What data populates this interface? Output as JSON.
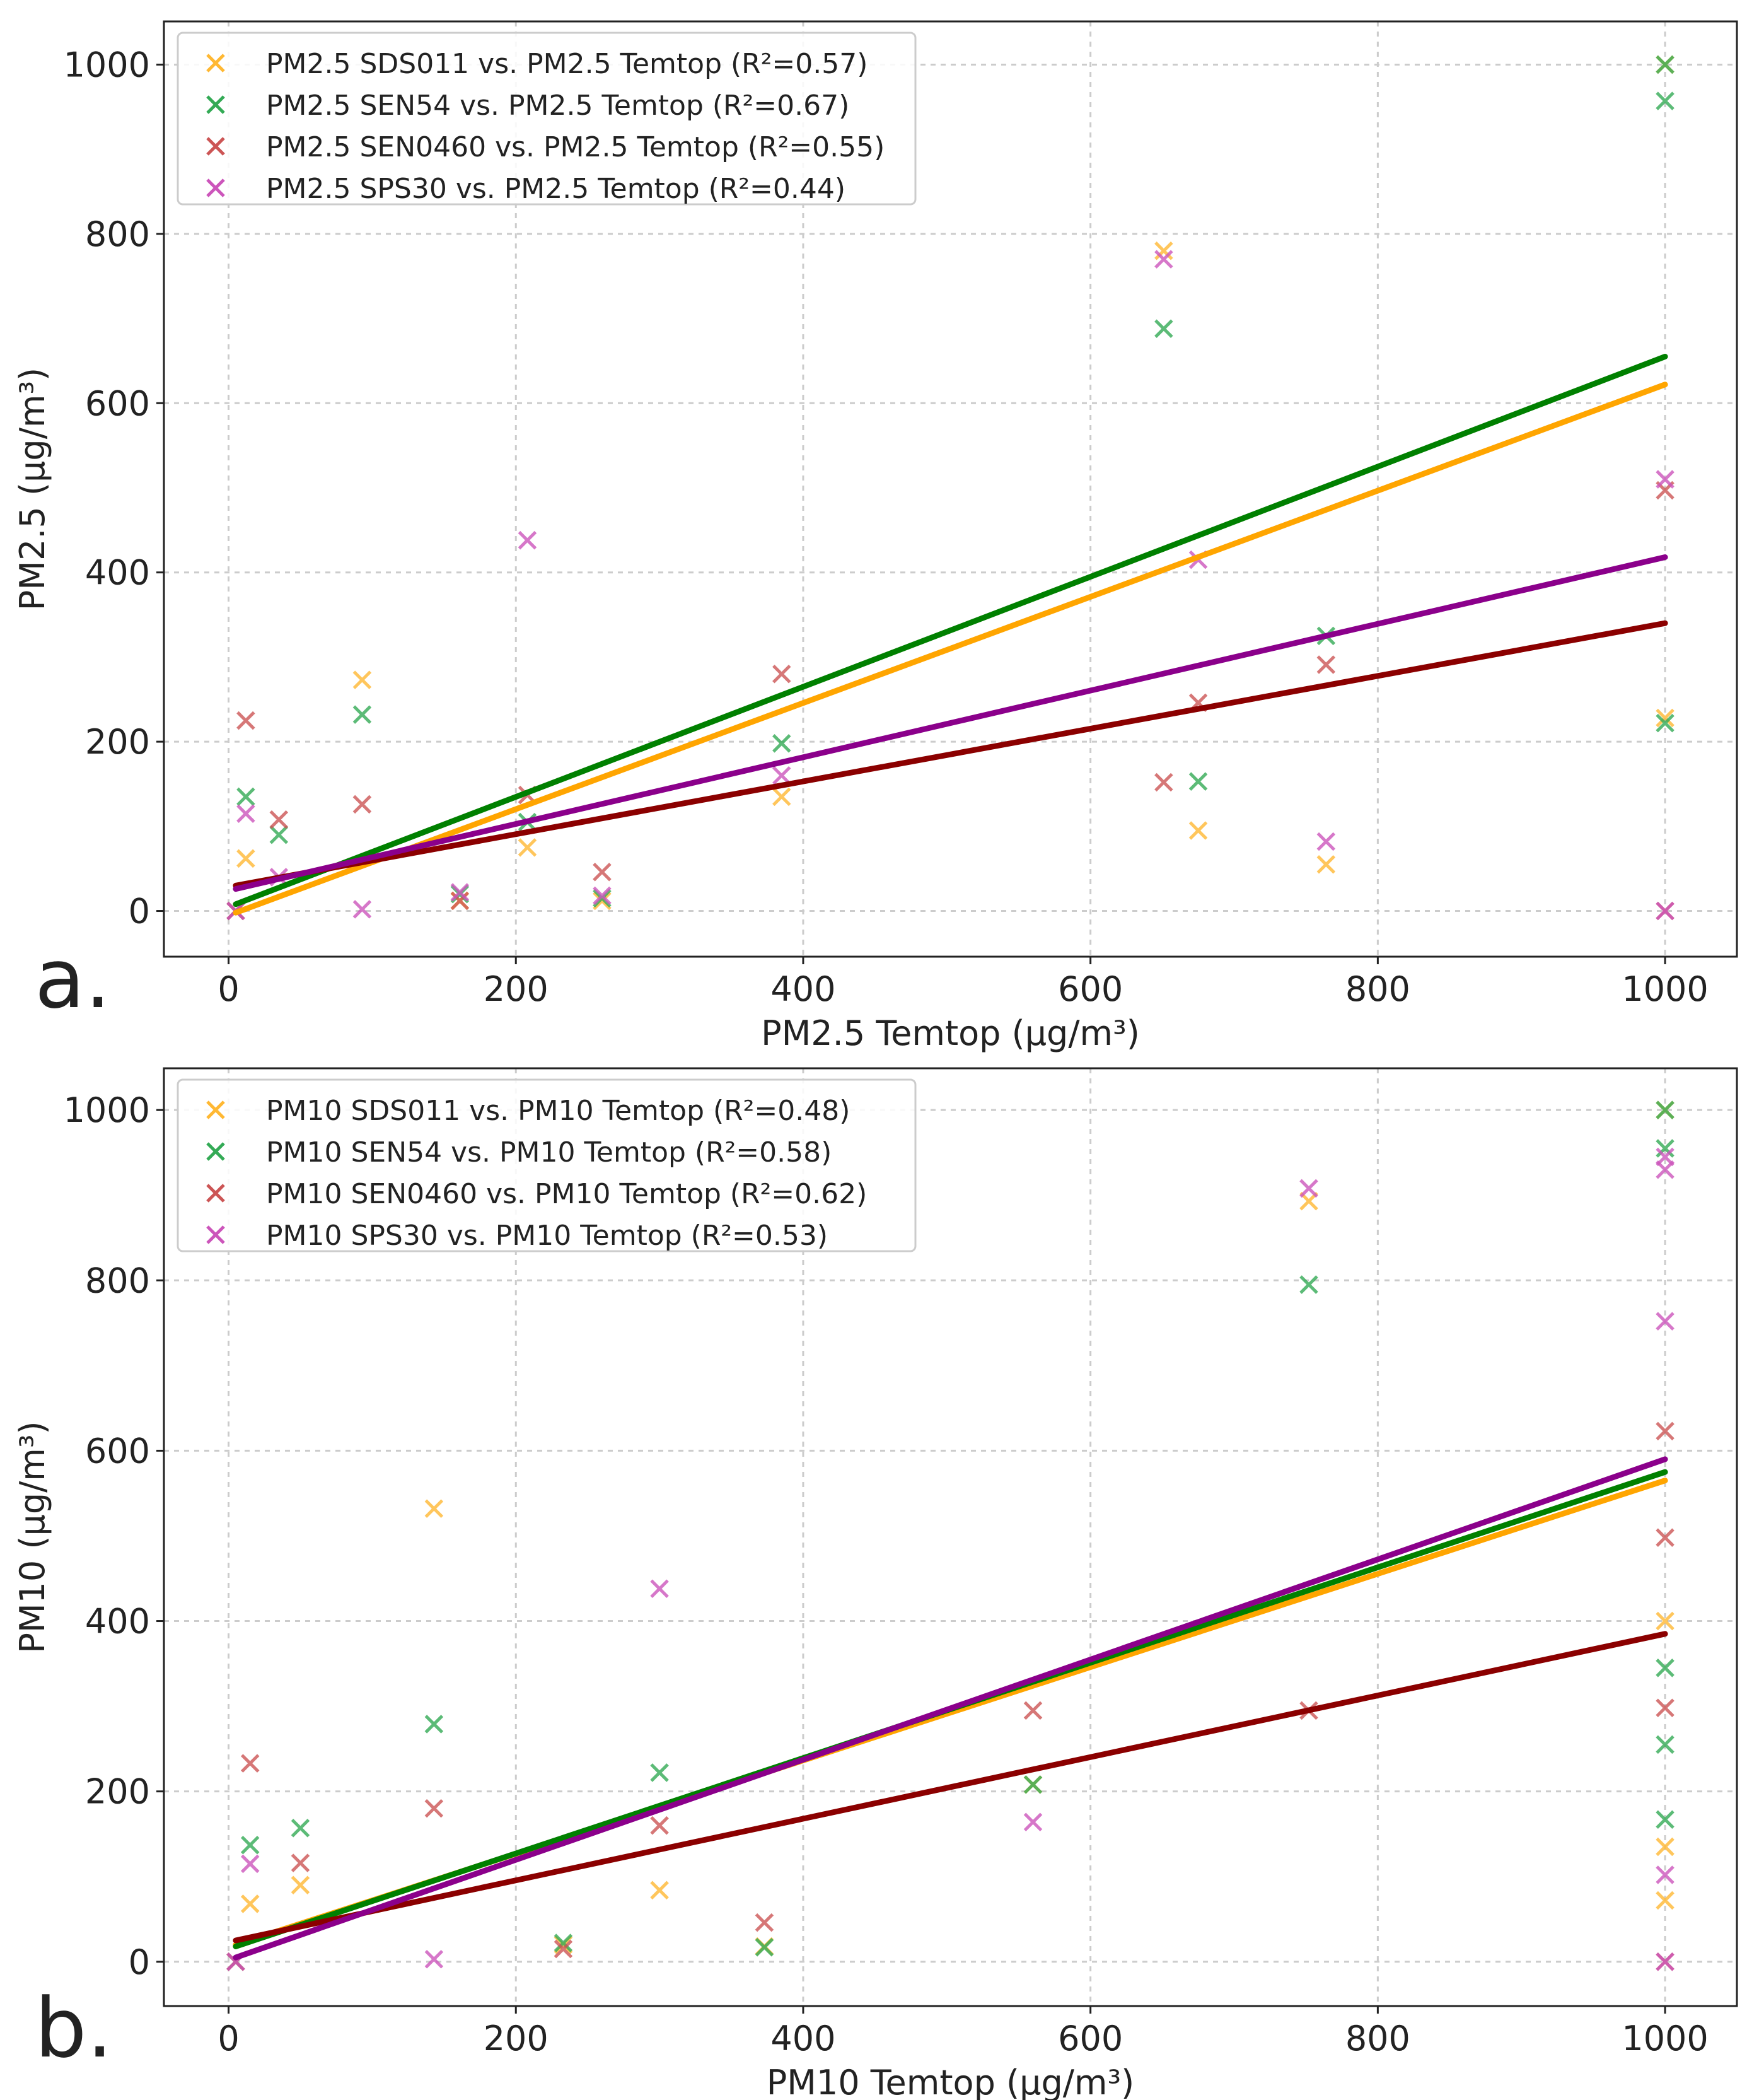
{
  "chart_data": [
    {
      "type": "scatter",
      "panel_label": "a.",
      "xlabel": "PM2.5 Temtop (µg/m³)",
      "ylabel": "PM2.5 (µg/m³)",
      "xlim": [
        -45,
        1050
      ],
      "ylim": [
        -54,
        1051
      ],
      "xticks": [
        0,
        200,
        400,
        600,
        800,
        1000
      ],
      "yticks": [
        0,
        200,
        400,
        600,
        800,
        1000
      ],
      "grid": true,
      "legend_position": "top-left",
      "series": [
        {
          "name": "PM2.5 SDS011 vs. PM2.5 Temtop (R²=0.57)",
          "color": "#FFB833",
          "line_color": "#FFA500",
          "points": [
            [
              5,
              0
            ],
            [
              12,
              62
            ],
            [
              93,
              273
            ],
            [
              161,
              12
            ],
            [
              208,
              75
            ],
            [
              260,
              12
            ],
            [
              385,
              135
            ],
            [
              651,
              780
            ],
            [
              675,
              95
            ],
            [
              764,
              55
            ],
            [
              1000,
              228
            ],
            [
              1000,
              1000
            ]
          ],
          "fit": [
            [
              5,
              -2
            ],
            [
              1000,
              622
            ]
          ]
        },
        {
          "name": "PM2.5 SEN54 vs. PM2.5 Temtop (R²=0.67)",
          "color": "#33AA55",
          "line_color": "#008000",
          "points": [
            [
              5,
              0
            ],
            [
              12,
              135
            ],
            [
              35,
              90
            ],
            [
              93,
              232
            ],
            [
              161,
              20
            ],
            [
              208,
              105
            ],
            [
              260,
              15
            ],
            [
              385,
              198
            ],
            [
              651,
              688
            ],
            [
              675,
              153
            ],
            [
              764,
              325
            ],
            [
              1000,
              957
            ],
            [
              1000,
              1000
            ],
            [
              1000,
              222
            ]
          ],
          "fit": [
            [
              5,
              8
            ],
            [
              1000,
              655
            ]
          ]
        },
        {
          "name": "PM2.5 SEN0460 vs. PM2.5 Temtop (R²=0.55)",
          "color": "#CC5555",
          "line_color": "#8B0000",
          "points": [
            [
              5,
              0
            ],
            [
              12,
              225
            ],
            [
              35,
              108
            ],
            [
              93,
              126
            ],
            [
              161,
              12
            ],
            [
              208,
              137
            ],
            [
              260,
              46
            ],
            [
              385,
              280
            ],
            [
              651,
              152
            ],
            [
              675,
              246
            ],
            [
              764,
              291
            ],
            [
              1000,
              497
            ],
            [
              1000,
              0
            ]
          ],
          "fit": [
            [
              5,
              30
            ],
            [
              1000,
              340
            ]
          ]
        },
        {
          "name": "PM2.5 SPS30 vs. PM2.5 Temtop (R²=0.44)",
          "color": "#CC55BB",
          "line_color": "#8B008B",
          "points": [
            [
              5,
              0
            ],
            [
              12,
              115
            ],
            [
              35,
              40
            ],
            [
              93,
              2
            ],
            [
              161,
              22
            ],
            [
              208,
              438
            ],
            [
              260,
              18
            ],
            [
              385,
              160
            ],
            [
              651,
              770
            ],
            [
              675,
              415
            ],
            [
              764,
              82
            ],
            [
              1000,
              510
            ],
            [
              1000,
              0
            ]
          ],
          "fit": [
            [
              5,
              26
            ],
            [
              1000,
              418
            ]
          ]
        }
      ]
    },
    {
      "type": "scatter",
      "panel_label": "b.",
      "xlabel": "PM10 Temtop (µg/m³)",
      "ylabel": "PM10 (µg/m³)",
      "xlim": [
        -45,
        1050
      ],
      "ylim": [
        -52,
        1049
      ],
      "xticks": [
        0,
        200,
        400,
        600,
        800,
        1000
      ],
      "yticks": [
        0,
        200,
        400,
        600,
        800,
        1000
      ],
      "grid": true,
      "legend_position": "top-left",
      "series": [
        {
          "name": "PM10 SDS011 vs. PM10 Temtop (R²=0.48)",
          "color": "#FFB833",
          "line_color": "#FFA500",
          "points": [
            [
              5,
              0
            ],
            [
              15,
              68
            ],
            [
              50,
              90
            ],
            [
              143,
              532
            ],
            [
              233,
              20
            ],
            [
              300,
              84
            ],
            [
              373,
              18
            ],
            [
              560,
              208
            ],
            [
              752,
              893
            ],
            [
              1000,
              400
            ],
            [
              1000,
              135
            ],
            [
              1000,
              72
            ],
            [
              1000,
              1000
            ]
          ],
          "fit": [
            [
              5,
              20
            ],
            [
              1000,
              565
            ]
          ]
        },
        {
          "name": "PM10 SEN54 vs. PM10 Temtop (R²=0.58)",
          "color": "#33AA55",
          "line_color": "#008000",
          "points": [
            [
              5,
              0
            ],
            [
              15,
              137
            ],
            [
              50,
              157
            ],
            [
              143,
              279
            ],
            [
              233,
              22
            ],
            [
              300,
              222
            ],
            [
              373,
              17
            ],
            [
              560,
              208
            ],
            [
              752,
              795
            ],
            [
              1000,
              955
            ],
            [
              1000,
              345
            ],
            [
              1000,
              255
            ],
            [
              1000,
              167
            ],
            [
              1000,
              1000
            ]
          ],
          "fit": [
            [
              5,
              18
            ],
            [
              1000,
              575
            ]
          ]
        },
        {
          "name": "PM10 SEN0460 vs. PM10 Temtop (R²=0.62)",
          "color": "#CC5555",
          "line_color": "#8B0000",
          "points": [
            [
              5,
              0
            ],
            [
              15,
              233
            ],
            [
              50,
              116
            ],
            [
              143,
              180
            ],
            [
              233,
              15
            ],
            [
              300,
              160
            ],
            [
              373,
              46
            ],
            [
              560,
              295
            ],
            [
              752,
              295
            ],
            [
              1000,
              623
            ],
            [
              1000,
              498
            ],
            [
              1000,
              298
            ],
            [
              1000,
              0
            ]
          ],
          "fit": [
            [
              5,
              25
            ],
            [
              1000,
              385
            ]
          ]
        },
        {
          "name": "PM10 SPS30 vs. PM10 Temtop (R²=0.53)",
          "color": "#CC55BB",
          "line_color": "#8B008B",
          "points": [
            [
              5,
              0
            ],
            [
              15,
              115
            ],
            [
              143,
              3
            ],
            [
              300,
              438
            ],
            [
              560,
              164
            ],
            [
              752,
              908
            ],
            [
              1000,
              930
            ],
            [
              1000,
              945
            ],
            [
              1000,
              752
            ],
            [
              1000,
              102
            ],
            [
              1000,
              0
            ]
          ],
          "fit": [
            [
              5,
              5
            ],
            [
              1000,
              590
            ]
          ]
        }
      ]
    }
  ]
}
